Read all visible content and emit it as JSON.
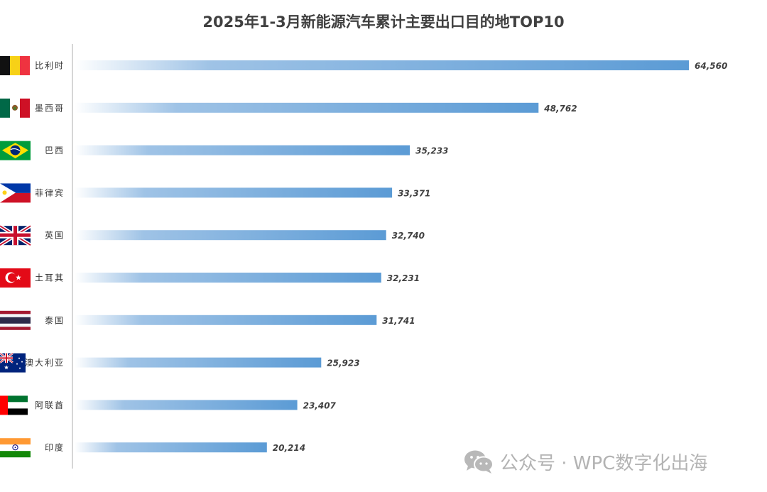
{
  "chart_data": {
    "type": "bar",
    "orientation": "horizontal",
    "title": "2025年1-3月新能源汽车累计主要出口目的地TOP10",
    "categories": [
      "比利时",
      "墨西哥",
      "巴西",
      "菲律宾",
      "英国",
      "土耳其",
      "泰国",
      "澳大利亚",
      "阿联酋",
      "印度"
    ],
    "values": [
      64560,
      48762,
      35233,
      33371,
      32740,
      32231,
      31741,
      25923,
      23407,
      20214
    ],
    "value_labels": [
      "64,560",
      "48,762",
      "35,233",
      "33,371",
      "32,740",
      "32,231",
      "31,741",
      "25,923",
      "23,407",
      "20,214"
    ],
    "flags": [
      "belgium-flag",
      "mexico-flag",
      "brazil-flag",
      "philippines-flag",
      "uk-flag",
      "turkey-flag",
      "thailand-flag",
      "australia-flag",
      "uae-flag",
      "india-flag"
    ],
    "bar_color_start": "#ffffff",
    "bar_color_end": "#5b9bd5",
    "grid": false,
    "legend": "none"
  },
  "watermark": {
    "icon": "wechat-icon",
    "text": "公众号 · WPC数字化出海"
  }
}
